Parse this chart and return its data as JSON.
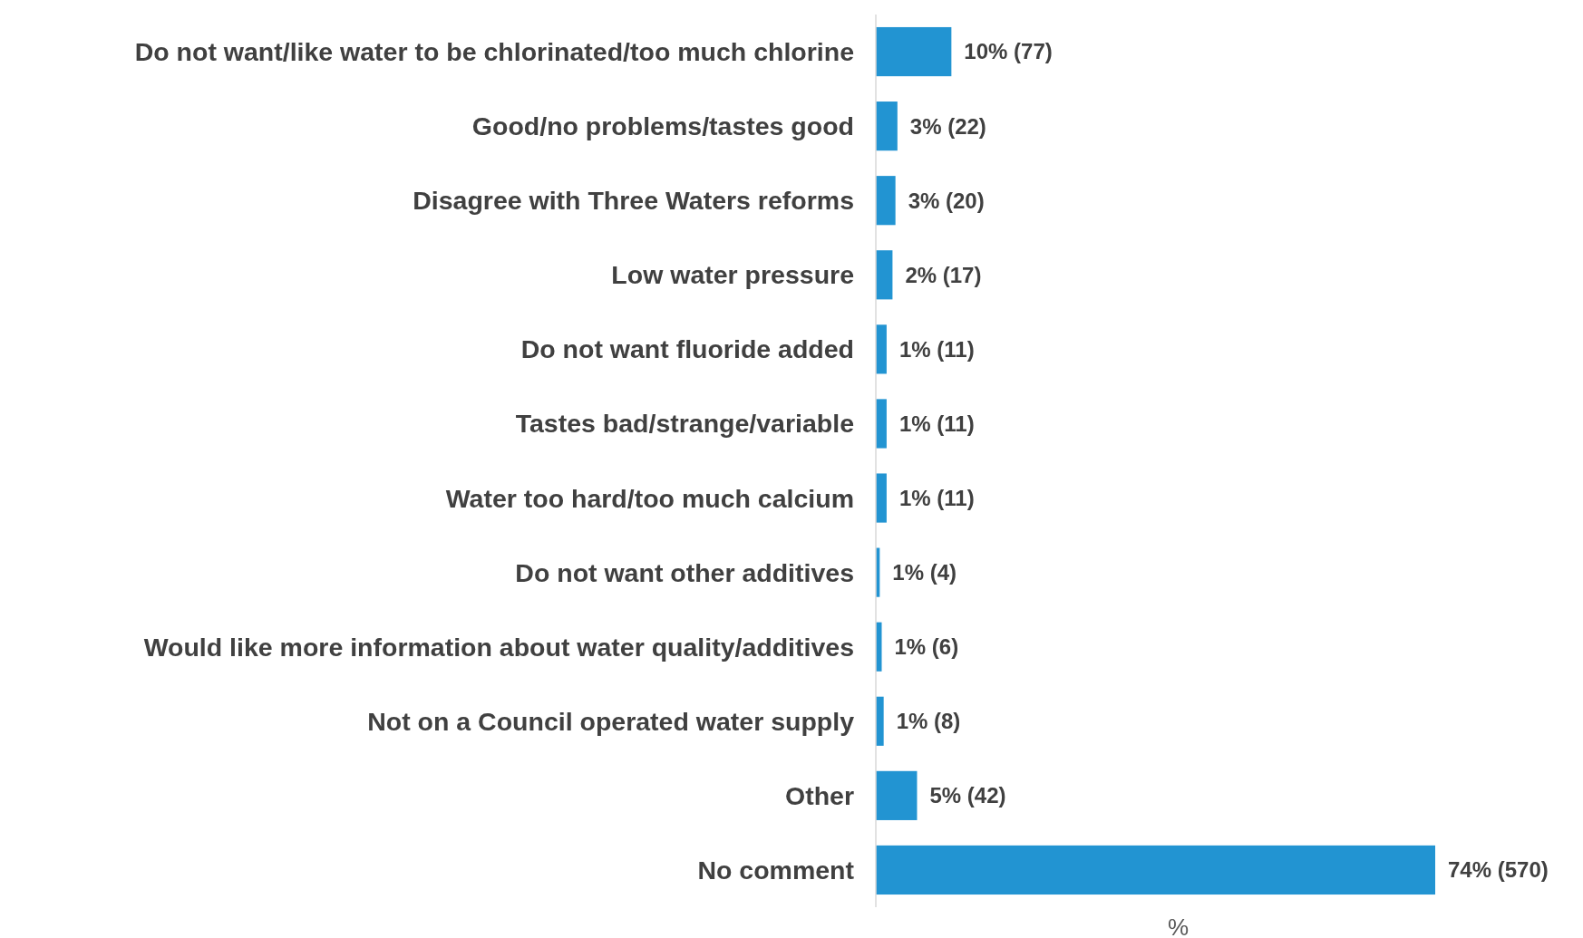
{
  "chart_data": {
    "type": "bar",
    "orientation": "horizontal",
    "xlabel": "%",
    "categories": [
      "Do not want/like water to be chlorinated/too much chlorine",
      "Good/no problems/tastes good",
      "Disagree with Three Waters reforms",
      "Low water pressure",
      "Do not want fluoride added",
      "Tastes bad/strange/variable",
      "Water too hard/too much calcium",
      "Do not want other additives",
      "Would like more information about water quality/additives",
      "Not on a Council operated water supply",
      "Other",
      "No comment"
    ],
    "values": [
      77,
      22,
      20,
      17,
      11,
      11,
      11,
      4,
      6,
      8,
      42,
      570
    ],
    "value_labels": [
      "10% (77)",
      "3% (22)",
      "3% (20)",
      "2% (17)",
      "1% (11)",
      "1% (11)",
      "1% (11)",
      "1% (4)",
      "1% (6)",
      "1% (8)",
      "5% (42)",
      "74% (570)"
    ],
    "color": "#2294d2"
  }
}
